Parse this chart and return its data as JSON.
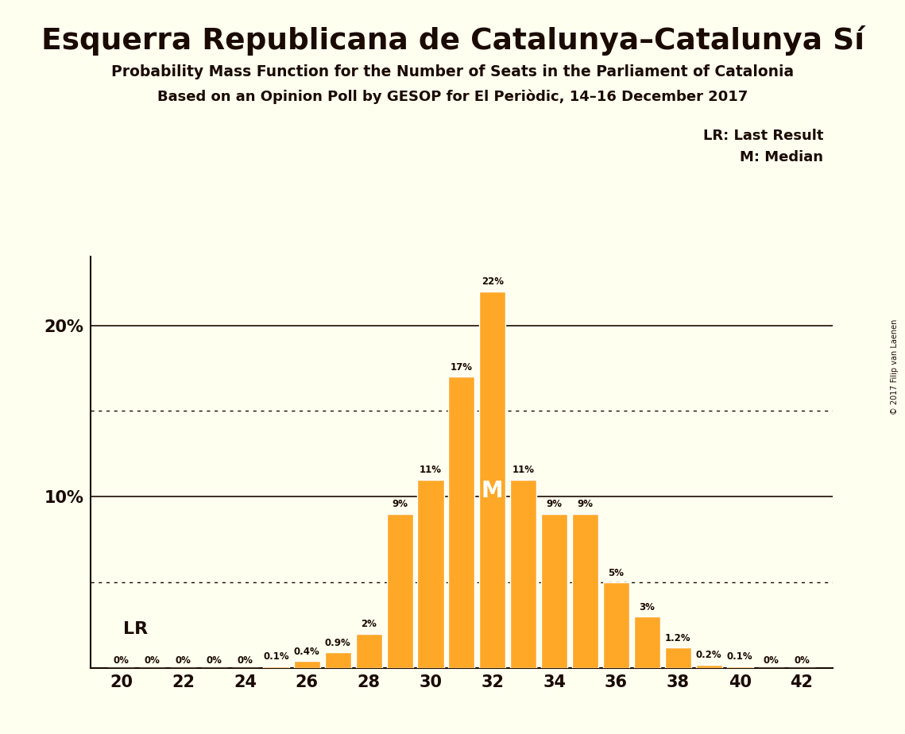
{
  "title": "Esquerra Republicana de Catalunya–Catalunya Sí",
  "subtitle1": "Probability Mass Function for the Number of Seats in the Parliament of Catalonia",
  "subtitle2": "Based on an Opinion Poll by GESOP for El Periòdic, 14–16 December 2017",
  "copyright": "© 2017 Filip van Laenen",
  "legend_lr": "LR: Last Result",
  "legend_m": "M: Median",
  "bar_color": "#FFA828",
  "background_color": "#FFFFF0",
  "seats": [
    20,
    21,
    22,
    23,
    24,
    25,
    26,
    27,
    28,
    29,
    30,
    31,
    32,
    33,
    34,
    35,
    36,
    37,
    38,
    39,
    40,
    41,
    42
  ],
  "probabilities": [
    0.0,
    0.0,
    0.0,
    0.0,
    0.0,
    0.1,
    0.4,
    0.9,
    2.0,
    9.0,
    11.0,
    17.0,
    22.0,
    11.0,
    9.0,
    9.0,
    5.0,
    3.0,
    1.2,
    0.2,
    0.1,
    0.0,
    0.0
  ],
  "labels": [
    "0%",
    "0%",
    "0%",
    "0%",
    "0%",
    "0.1%",
    "0.4%",
    "0.9%",
    "2%",
    "9%",
    "11%",
    "17%",
    "22%",
    "11%",
    "9%",
    "9%",
    "5%",
    "3%",
    "1.2%",
    "0.2%",
    "0.1%",
    "0%",
    "0%"
  ],
  "median": 32,
  "last_result": 20,
  "ylim": [
    0,
    24
  ],
  "solid_yticks": [
    10,
    20
  ],
  "dotted_yticks": [
    5,
    15
  ],
  "xlim": [
    19,
    43
  ],
  "xticks": [
    20,
    22,
    24,
    26,
    28,
    30,
    32,
    34,
    36,
    38,
    40,
    42
  ],
  "spine_color": "#1a0a00",
  "text_color": "#1a0a00"
}
